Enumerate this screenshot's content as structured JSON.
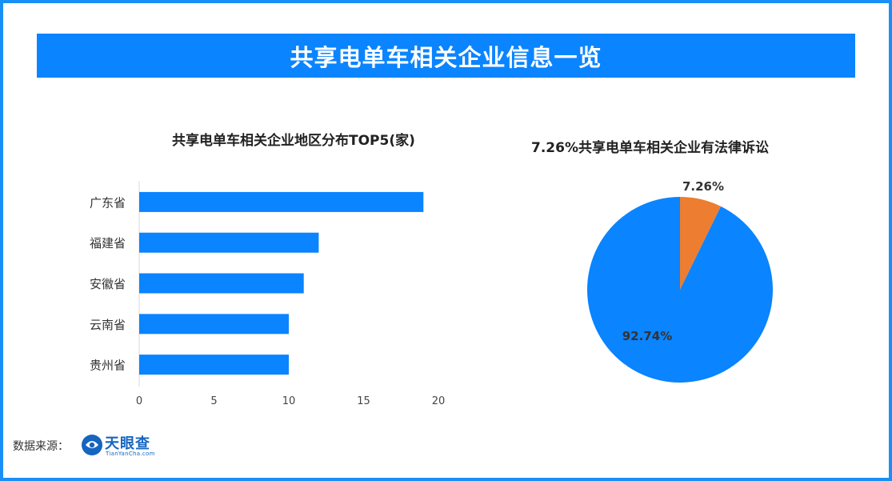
{
  "banner": {
    "title": "共享电单车相关企业信息一览"
  },
  "colors": {
    "accent": "#0a84ff",
    "orange": "#ed7d31",
    "frame": "#1a8ff5"
  },
  "source": {
    "label": "数据来源：",
    "logo_text": "天眼查",
    "logo_sub": "TianYanCha.com"
  },
  "chart_data": [
    {
      "type": "bar",
      "orientation": "horizontal",
      "title": "共享电单车相关企业地区分布TOP5(家)",
      "categories": [
        "广东省",
        "福建省",
        "安徽省",
        "云南省",
        "贵州省"
      ],
      "values": [
        19,
        12,
        11,
        10,
        10
      ],
      "xlim": [
        0,
        20
      ],
      "xticks": [
        0,
        5,
        10,
        15,
        20
      ],
      "grid": false,
      "color": "#0a84ff"
    },
    {
      "type": "pie",
      "title": "7.26%共享电单车相关企业有法律诉讼",
      "slices": [
        {
          "value": 7.26,
          "label": "7.26%",
          "color": "#ed7d31"
        },
        {
          "value": 92.74,
          "label": "92.74%",
          "color": "#0a84ff"
        }
      ]
    }
  ]
}
